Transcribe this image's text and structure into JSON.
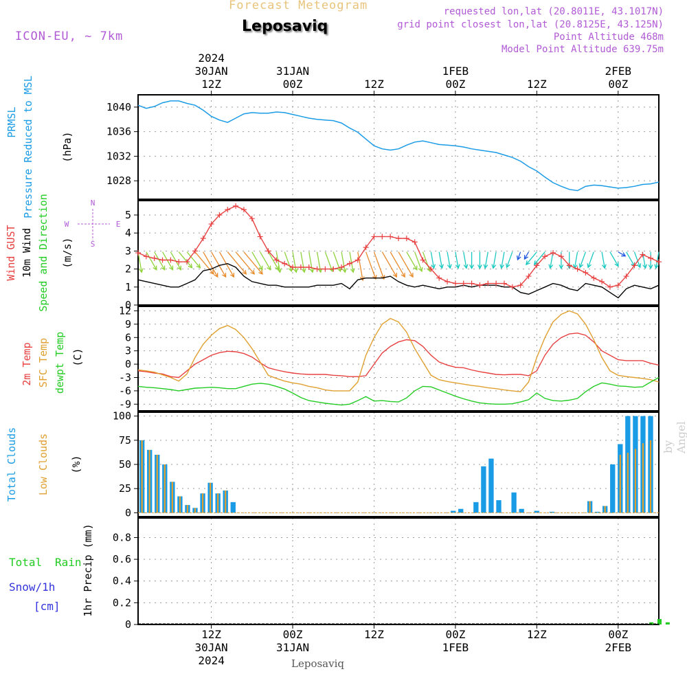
{
  "header": {
    "top_title": "Forecast Meteogram",
    "location": "Leposaviq",
    "model": "ICON-EU, ~ 7km",
    "requested": "requested lon,lat (20.8011E, 43.1017N)",
    "grid_point": "grid point closest lon,lat (20.8125E, 43.125N)",
    "point_altitude": "Point Altitude 468m",
    "model_altitude": "Model Point Altitude 639.75m",
    "footer": "Leposaviq",
    "watermark": "by Angel"
  },
  "time_axis": {
    "range": [
      0,
      64
    ],
    "ticks": [
      {
        "t": 9,
        "top": [
          "2024",
          "30JAN",
          "12Z"
        ],
        "bottom": [
          "12Z",
          "30JAN",
          "2024"
        ]
      },
      {
        "t": 19,
        "top": [
          "31JAN",
          "00Z"
        ],
        "bottom": [
          "00Z",
          "31JAN"
        ]
      },
      {
        "t": 29,
        "top": [
          "12Z"
        ],
        "bottom": [
          "12Z"
        ]
      },
      {
        "t": 39,
        "top": [
          "1FEB",
          "00Z"
        ],
        "bottom": [
          "00Z",
          "1FEB"
        ]
      },
      {
        "t": 49,
        "top": [
          "12Z"
        ],
        "bottom": [
          "12Z"
        ]
      },
      {
        "t": 59,
        "top": [
          "2FEB",
          "00Z"
        ],
        "bottom": [
          "00Z",
          "2FEB"
        ]
      }
    ],
    "note": "t = hours/1.2 from 30JAN 01Z; 00Z/12Z marks every 10 units"
  },
  "colors": {
    "pressure": "#1a9be6",
    "gust": "#e84040",
    "wind": "#000000",
    "temp2m": "#e84040",
    "sfc": "#e0a030",
    "dewpt": "#22cc22",
    "total_clouds": "#1a9be6",
    "low_clouds": "#e0a030",
    "rain": "#22cc22",
    "snow": "#3333dd",
    "legend_purple": "#b15ad6",
    "grid": "#999999"
  },
  "chart_data": [
    {
      "type": "line",
      "id": "pressure",
      "ylabels": [
        "PRMSL",
        "Pressure Reduced to MSL",
        "(hPa)"
      ],
      "ylim": [
        1025,
        1042
      ],
      "yticks": [
        1028,
        1032,
        1036,
        1040
      ],
      "series": [
        {
          "key": "pressure",
          "values": [
            1040.3,
            1039.8,
            1040.1,
            1040.7,
            1041.0,
            1041.0,
            1040.6,
            1040.3,
            1039.5,
            1038.5,
            1037.9,
            1037.5,
            1038.2,
            1038.9,
            1039.1,
            1039.0,
            1039.0,
            1039.2,
            1039.1,
            1038.8,
            1038.5,
            1038.2,
            1038.0,
            1037.9,
            1037.8,
            1037.4,
            1036.6,
            1035.9,
            1034.8,
            1033.7,
            1033.2,
            1033.0,
            1033.2,
            1033.8,
            1034.3,
            1034.5,
            1034.2,
            1033.9,
            1033.8,
            1033.7,
            1033.5,
            1033.2,
            1033.0,
            1032.8,
            1032.6,
            1032.2,
            1031.8,
            1031.2,
            1030.3,
            1029.6,
            1028.6,
            1027.7,
            1027.1,
            1026.6,
            1026.4,
            1027.1,
            1027.3,
            1027.2,
            1027.0,
            1026.8,
            1026.9,
            1027.1,
            1027.4,
            1027.5,
            1027.8
          ]
        }
      ]
    },
    {
      "type": "line",
      "id": "wind",
      "ylabels": [
        "Wind GUST",
        "10m Wind",
        "Speed and Direction",
        "(m/s)"
      ],
      "compass": [
        "N",
        "W",
        "E",
        "S"
      ],
      "ylim": [
        0,
        5.8
      ],
      "yticks": [
        0,
        1,
        2,
        3,
        4,
        5
      ],
      "series": [
        {
          "key": "gust",
          "name": "Wind GUST",
          "values": [
            2.9,
            2.7,
            2.6,
            2.5,
            2.5,
            2.4,
            2.4,
            3.0,
            3.7,
            4.5,
            5.0,
            5.3,
            5.5,
            5.3,
            4.8,
            3.8,
            3.0,
            2.5,
            2.3,
            2.1,
            2.1,
            2.1,
            2.0,
            2.0,
            2.0,
            2.1,
            2.3,
            2.5,
            3.2,
            3.8,
            3.8,
            3.8,
            3.7,
            3.7,
            3.5,
            2.5,
            2.0,
            1.5,
            1.3,
            1.2,
            1.2,
            1.2,
            1.1,
            1.2,
            1.2,
            1.2,
            1.0,
            1.1,
            1.6,
            2.2,
            2.7,
            2.9,
            2.7,
            2.2,
            2.0,
            1.8,
            1.5,
            1.3,
            1.0,
            1.1,
            1.6,
            2.2,
            2.8,
            2.6,
            2.4
          ]
        },
        {
          "key": "wind",
          "name": "10m Wind",
          "values": [
            1.4,
            1.3,
            1.2,
            1.1,
            1.0,
            1.0,
            1.2,
            1.4,
            1.9,
            2.0,
            2.2,
            2.3,
            2.1,
            1.6,
            1.3,
            1.2,
            1.1,
            1.1,
            1.0,
            1.0,
            1.0,
            1.0,
            1.1,
            1.1,
            1.1,
            1.2,
            0.9,
            1.4,
            1.5,
            1.5,
            1.5,
            1.6,
            1.3,
            1.1,
            1.0,
            1.1,
            1.0,
            0.9,
            1.0,
            1.0,
            1.1,
            1.0,
            1.1,
            1.1,
            1.1,
            1.0,
            1.0,
            0.7,
            0.6,
            0.8,
            1.0,
            1.2,
            1.1,
            0.9,
            0.8,
            1.2,
            1.1,
            1.0,
            0.7,
            0.4,
            0.9,
            1.1,
            1.0,
            0.9,
            1.1
          ]
        }
      ],
      "barbs": {
        "y": 2.95,
        "dir": [
          350,
          330,
          330,
          330,
          330,
          320,
          320,
          320,
          330,
          330,
          330,
          320,
          320,
          320,
          330,
          330,
          330,
          350,
          340,
          350,
          350,
          350,
          350,
          340,
          340,
          350,
          350,
          350,
          340,
          340,
          330,
          330,
          330,
          330,
          340,
          340,
          350,
          350,
          350,
          350,
          350,
          0,
          0,
          10,
          10,
          10,
          20,
          20,
          30,
          40,
          40,
          10,
          0,
          0,
          10,
          20,
          20,
          350,
          330,
          300,
          330,
          340,
          350,
          0,
          10
        ],
        "speed_class": [
          2,
          2,
          2,
          2,
          2,
          2,
          2,
          3,
          3,
          3,
          3,
          3,
          3,
          3,
          2,
          2,
          2,
          2,
          2,
          2,
          2,
          2,
          2,
          2,
          2,
          2,
          2,
          3,
          3,
          3,
          3,
          3,
          3,
          2,
          2,
          2,
          1,
          1,
          1,
          1,
          1,
          1,
          1,
          1,
          1,
          1,
          1,
          0,
          0,
          1,
          1,
          1,
          1,
          1,
          1,
          1,
          1,
          1,
          1,
          0,
          1,
          1,
          1,
          1,
          1
        ]
      }
    },
    {
      "type": "line",
      "id": "temp",
      "ylabels": [
        "2m Temp",
        "SFC Temp",
        "dewpt Temp",
        "(C)"
      ],
      "ylim": [
        -10.5,
        13
      ],
      "yticks": [
        -9,
        -6,
        -3,
        0,
        3,
        6,
        9,
        12
      ],
      "series": [
        {
          "key": "temp2m",
          "name": "2m Temp",
          "values": [
            -1.5,
            -1.7,
            -2.0,
            -2.2,
            -2.8,
            -3.0,
            -1.5,
            0.0,
            1.0,
            2.0,
            2.6,
            2.9,
            2.8,
            2.4,
            1.6,
            0.3,
            -0.8,
            -1.3,
            -1.7,
            -2.0,
            -2.2,
            -2.3,
            -2.3,
            -2.3,
            -2.5,
            -2.6,
            -2.8,
            -2.8,
            -2.6,
            0.0,
            2.5,
            4.0,
            5.0,
            5.5,
            5.3,
            4.0,
            2.0,
            0.5,
            -0.2,
            -0.7,
            -0.8,
            -1.3,
            -1.7,
            -2.0,
            -2.3,
            -2.4,
            -2.3,
            -2.3,
            -2.6,
            -1.5,
            2.0,
            4.5,
            6.0,
            6.8,
            7.0,
            6.5,
            5.0,
            3.0,
            2.0,
            1.0,
            0.8,
            0.8,
            0.8,
            0.2,
            -0.2
          ]
        },
        {
          "key": "sfc",
          "name": "SFC Temp",
          "values": [
            -1.3,
            -1.5,
            -1.8,
            -2.4,
            -3.0,
            -3.8,
            -2.2,
            1.5,
            4.5,
            6.5,
            8.0,
            8.7,
            7.8,
            6.0,
            3.5,
            0.5,
            -2.5,
            -3.2,
            -3.8,
            -4.2,
            -4.5,
            -5.0,
            -5.3,
            -5.8,
            -6.0,
            -6.0,
            -6.0,
            -4.0,
            2.0,
            6.0,
            9.0,
            10.3,
            9.5,
            7.2,
            3.5,
            0.5,
            -2.5,
            -3.5,
            -3.9,
            -4.2,
            -4.5,
            -4.8,
            -5.0,
            -5.3,
            -5.5,
            -5.8,
            -6.0,
            -6.2,
            -4.0,
            1.5,
            6.0,
            9.5,
            11.2,
            12.0,
            11.3,
            9.0,
            5.5,
            1.5,
            -1.5,
            -2.5,
            -2.8,
            -3.0,
            -3.2,
            -3.5,
            -4.0
          ]
        },
        {
          "key": "dewpt",
          "name": "dewpt Temp",
          "values": [
            -5.0,
            -5.2,
            -5.3,
            -5.5,
            -5.7,
            -6.0,
            -5.7,
            -5.4,
            -5.3,
            -5.2,
            -5.3,
            -5.5,
            -5.5,
            -5.0,
            -4.5,
            -4.3,
            -4.5,
            -5.0,
            -5.6,
            -6.5,
            -7.5,
            -8.2,
            -8.5,
            -8.8,
            -9.0,
            -9.2,
            -9.0,
            -8.2,
            -7.3,
            -8.3,
            -8.2,
            -8.4,
            -8.5,
            -7.6,
            -6.0,
            -5.0,
            -5.1,
            -5.8,
            -6.5,
            -7.2,
            -7.8,
            -8.3,
            -8.7,
            -8.9,
            -9.0,
            -9.0,
            -8.9,
            -8.5,
            -8.0,
            -6.5,
            -7.7,
            -8.2,
            -8.3,
            -8.1,
            -7.7,
            -6.2,
            -5.0,
            -4.2,
            -4.5,
            -4.9,
            -5.0,
            -5.2,
            -5.1,
            -4.0,
            -3.0
          ]
        }
      ]
    },
    {
      "type": "bar",
      "id": "clouds",
      "ylabels": [
        "Total Clouds",
        "Low Clouds",
        "(%)"
      ],
      "ylim": [
        -4,
        104
      ],
      "yticks": [
        0,
        25,
        50,
        75,
        100
      ],
      "series": [
        {
          "key": "total_clouds",
          "name": "Total Clouds",
          "values": [
            75,
            65,
            60,
            50,
            32,
            17,
            8,
            5,
            20,
            31,
            20,
            23,
            11,
            0,
            0,
            0,
            0,
            0,
            0,
            0,
            0,
            0,
            0,
            0,
            0,
            0,
            0,
            0,
            0,
            0,
            0,
            0,
            0,
            0,
            0,
            0,
            0,
            0,
            0,
            0,
            0,
            2,
            4,
            0,
            11,
            48,
            56,
            13,
            0,
            21,
            4,
            0,
            2,
            0,
            1,
            0,
            0,
            0,
            0,
            12,
            1,
            7,
            50,
            71,
            100,
            100,
            100,
            100,
            100
          ]
        },
        {
          "key": "low_clouds",
          "name": "Low Clouds",
          "values": [
            75,
            65,
            60,
            50,
            32,
            17,
            8,
            5,
            20,
            31,
            20,
            23,
            0,
            0,
            0,
            0,
            0,
            0,
            0,
            0,
            0,
            0,
            0,
            0,
            0,
            0,
            0,
            0,
            0,
            0,
            0,
            0,
            0,
            0,
            0,
            0,
            0,
            0,
            0,
            0,
            0,
            0,
            0,
            0,
            0,
            0,
            0,
            0,
            0,
            0,
            0,
            0,
            0,
            0,
            0,
            0,
            0,
            0,
            0,
            12,
            0,
            7,
            0,
            60,
            62,
            66,
            72,
            75,
            85
          ]
        }
      ]
    },
    {
      "type": "bar",
      "id": "precip",
      "ylabels": [
        "1hr Precip (mm)"
      ],
      "legend": [
        "Total",
        "Rain",
        "Snow/1h",
        "[cm]"
      ],
      "ylim": [
        0,
        0.98
      ],
      "yticks": [
        0,
        0.2,
        0.4,
        0.6,
        0.8
      ],
      "series": [
        {
          "key": "rain",
          "name": "Total Rain",
          "values": [
            0,
            0,
            0,
            0,
            0,
            0,
            0,
            0,
            0,
            0,
            0,
            0,
            0,
            0,
            0,
            0,
            0,
            0,
            0,
            0,
            0,
            0,
            0,
            0,
            0,
            0,
            0,
            0,
            0,
            0,
            0,
            0,
            0,
            0,
            0,
            0,
            0,
            0,
            0,
            0,
            0,
            0,
            0,
            0,
            0,
            0,
            0,
            0,
            0,
            0,
            0,
            0,
            0,
            0,
            0,
            0,
            0,
            0,
            0,
            0,
            0,
            0,
            0,
            0.02,
            0.05,
            0.02
          ]
        }
      ]
    }
  ]
}
